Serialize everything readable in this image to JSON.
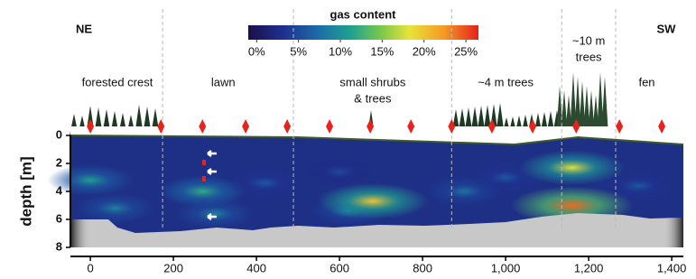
{
  "chart_data": {
    "type": "section",
    "colorbar_title": "gas content",
    "cticks": [
      {
        "value": 0,
        "label": "0%"
      },
      {
        "value": 5,
        "label": "5%"
      },
      {
        "value": 10,
        "label": "10%"
      },
      {
        "value": 15,
        "label": "15%"
      },
      {
        "value": 20,
        "label": "20%"
      },
      {
        "value": 25,
        "label": "25%"
      }
    ],
    "clim": [
      -1,
      26.5
    ],
    "left_label": "NE",
    "right_label": "SW",
    "ylabel": "depth [m]",
    "xlim": [
      -48,
      1428
    ],
    "xticks": [
      0,
      200,
      400,
      600,
      800,
      {
        "value": 1000,
        "label": "1,000"
      },
      {
        "value": 1200,
        "label": "1,200"
      },
      {
        "value": 1400,
        "label": "1,400"
      }
    ],
    "ylim": [
      0,
      8
    ],
    "yticks": [
      0,
      2,
      4,
      6,
      8
    ],
    "boundaries": [
      174,
      489,
      870,
      1135,
      1265
    ],
    "zones": [
      {
        "lines": [
          "forested crest"
        ],
        "x": 65
      },
      {
        "lines": [
          "lawn"
        ],
        "x": 320
      },
      {
        "lines": [
          "small shrubs",
          "& trees"
        ],
        "x": 680
      },
      {
        "lines": [
          "~4 m trees"
        ],
        "x": 1000
      },
      {
        "lines": [
          "~10 m",
          "trees"
        ],
        "x": 1200
      },
      {
        "lines": [
          "fen"
        ],
        "x": 1340
      }
    ],
    "sensors": [
      0,
      170,
      270,
      374,
      474,
      576,
      674,
      772,
      870,
      967,
      1065,
      1170,
      1274,
      1376
    ],
    "hotspots": [
      {
        "x": 0,
        "depth": 3.2,
        "value": 11
      },
      {
        "x": 60,
        "depth": 5.2,
        "value": 9
      },
      {
        "x": 270,
        "depth": 4,
        "value": 12
      },
      {
        "x": 300,
        "depth": 5.6,
        "value": 9
      },
      {
        "x": 420,
        "depth": 3.4,
        "value": 6
      },
      {
        "x": 600,
        "depth": 2.6,
        "value": 5
      },
      {
        "x": 620,
        "depth": 5.4,
        "value": 8
      },
      {
        "x": 680,
        "depth": 4.7,
        "value": 20
      },
      {
        "x": 900,
        "depth": 4,
        "value": 8
      },
      {
        "x": 1000,
        "depth": 3,
        "value": 6
      },
      {
        "x": 1160,
        "depth": 2.3,
        "value": 18
      },
      {
        "x": 1160,
        "depth": 5,
        "value": 24
      },
      {
        "x": 1320,
        "depth": 3.6,
        "value": 6
      }
    ]
  }
}
